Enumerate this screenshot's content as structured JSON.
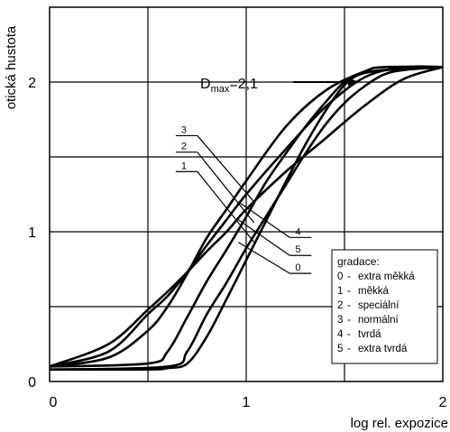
{
  "chart_data": {
    "type": "line",
    "xlabel": "log rel. expozice",
    "ylabel": "otická hustota",
    "xlim": [
      0,
      2
    ],
    "ylim": [
      0,
      2.5
    ],
    "x_ticks": [
      0,
      1,
      2
    ],
    "x_tick_labels": [
      "0",
      "1",
      "2"
    ],
    "y_ticks": [
      0,
      1,
      2
    ],
    "y_tick_labels": [
      "0",
      "1",
      "2"
    ],
    "grid": true,
    "gridlines_x": [
      0.5,
      1,
      1.5
    ],
    "gridlines_y": [
      0.5,
      1,
      1.5,
      2
    ],
    "annotation": {
      "text_main": "D",
      "text_sub": "max",
      "text_rest": "=2,1",
      "value": 2.1
    },
    "legend": {
      "position": "bottom-right",
      "title": "gradace:",
      "entries": [
        {
          "key": "0",
          "sep": "-",
          "label": "extra měkká"
        },
        {
          "key": "1",
          "sep": "-",
          "label": "měkká"
        },
        {
          "key": "2",
          "sep": "-",
          "label": "speciální"
        },
        {
          "key": "3",
          "sep": "-",
          "label": "normální"
        },
        {
          "key": "4",
          "sep": "-",
          "label": "tvrdá"
        },
        {
          "key": "5",
          "sep": "-",
          "label": "extra tvrdá"
        }
      ]
    },
    "series": [
      {
        "name": "0",
        "x": [
          0,
          0.5,
          0.6,
          0.7,
          0.8,
          0.9,
          1.0,
          1.1,
          1.2,
          1.3,
          1.4,
          1.5,
          1.6,
          1.7,
          2.0
        ],
        "y": [
          0.1,
          0.12,
          0.2,
          0.43,
          0.67,
          0.88,
          1.1,
          1.33,
          1.52,
          1.7,
          1.86,
          2.0,
          2.06,
          2.08,
          2.1
        ]
      },
      {
        "name": "1",
        "x": [
          0,
          0.3,
          0.5,
          0.6,
          0.7,
          0.8,
          0.9,
          1.0,
          1.2,
          1.4,
          1.6,
          1.8,
          2.0
        ],
        "y": [
          0.1,
          0.25,
          0.48,
          0.6,
          0.73,
          0.87,
          1.0,
          1.15,
          1.4,
          1.62,
          1.84,
          2.02,
          2.1
        ]
      },
      {
        "name": "2",
        "x": [
          0,
          0.3,
          0.5,
          0.6,
          0.7,
          0.8,
          0.9,
          1.0,
          1.2,
          1.4,
          1.6,
          1.8,
          2.0
        ],
        "y": [
          0.1,
          0.2,
          0.45,
          0.57,
          0.73,
          0.91,
          1.08,
          1.25,
          1.55,
          1.83,
          2.03,
          2.1,
          2.1
        ]
      },
      {
        "name": "3",
        "x": [
          0,
          0.3,
          0.5,
          0.6,
          0.7,
          0.8,
          0.9,
          1.0,
          1.2,
          1.4,
          1.6,
          1.7,
          2.0
        ],
        "y": [
          0.1,
          0.16,
          0.34,
          0.5,
          0.72,
          0.96,
          1.15,
          1.34,
          1.7,
          1.94,
          2.07,
          2.1,
          2.1
        ]
      },
      {
        "name": "4",
        "x": [
          0,
          0.6,
          0.7,
          0.8,
          0.9,
          1.0,
          1.1,
          1.2,
          1.3,
          1.4,
          1.5,
          1.6,
          1.7,
          1.8,
          2.0
        ],
        "y": [
          0.08,
          0.1,
          0.2,
          0.45,
          0.66,
          0.89,
          1.1,
          1.31,
          1.52,
          1.71,
          1.86,
          1.97,
          2.05,
          2.08,
          2.1
        ]
      },
      {
        "name": "5",
        "x": [
          0,
          0.5,
          0.6,
          0.7,
          0.8,
          0.9,
          1.0,
          1.1,
          1.2,
          1.3,
          1.4,
          1.5,
          1.6,
          1.8,
          2.0
        ],
        "y": [
          0.08,
          0.08,
          0.09,
          0.12,
          0.3,
          0.55,
          0.81,
          1.07,
          1.33,
          1.58,
          1.8,
          1.98,
          2.06,
          2.09,
          2.1
        ]
      }
    ],
    "curve_labels": [
      {
        "text": "3",
        "label_x": 0.66,
        "label_y": 1.66,
        "line_to_x": 1.04,
        "line_to_y": 1.2
      },
      {
        "text": "2",
        "label_x": 0.66,
        "label_y": 1.55,
        "line_to_x": 1.04,
        "line_to_y": 1.06
      },
      {
        "text": "1",
        "label_x": 0.66,
        "label_y": 1.42,
        "line_to_x": 1.04,
        "line_to_y": 0.93
      },
      {
        "text": "4",
        "label_x": 1.24,
        "label_y": 0.98,
        "line_to_x": 0.96,
        "line_to_y": 1.2
      },
      {
        "text": "5",
        "label_x": 1.24,
        "label_y": 0.86,
        "line_to_x": 0.96,
        "line_to_y": 1.08
      },
      {
        "text": "0",
        "label_x": 1.24,
        "label_y": 0.74,
        "line_to_x": 0.96,
        "line_to_y": 0.93
      }
    ]
  }
}
